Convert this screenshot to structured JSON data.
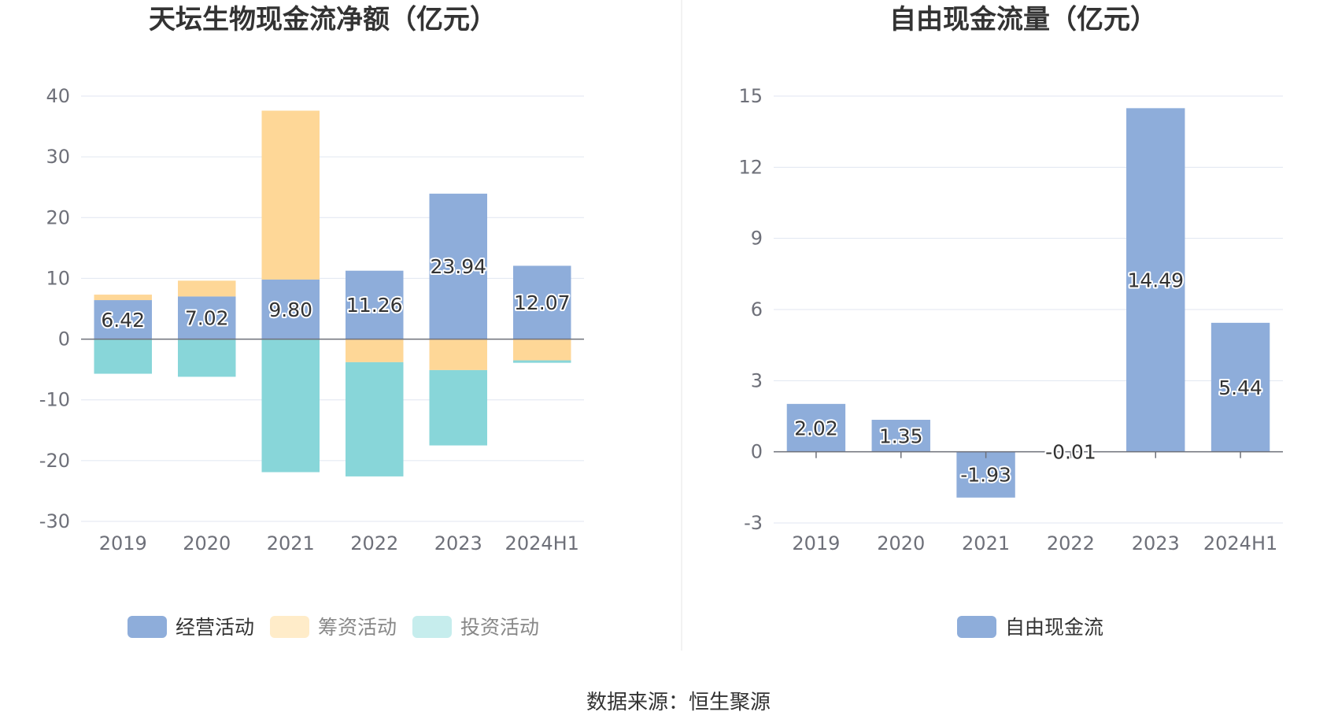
{
  "chart_data": [
    {
      "type": "bar",
      "stacked": true,
      "title": "天坛生物现金流净额（亿元）",
      "categories": [
        "2019",
        "2020",
        "2021",
        "2022",
        "2023",
        "2024H1"
      ],
      "ylim": [
        -30,
        40
      ],
      "yticks": [
        40,
        30,
        20,
        10,
        0,
        -10,
        -20,
        -30
      ],
      "series": [
        {
          "name": "经营活动",
          "color": "#8eadda",
          "values": [
            6.42,
            7.02,
            9.8,
            11.26,
            23.94,
            12.07
          ],
          "labels": [
            "6.42",
            "7.02",
            "9.80",
            "11.26",
            "23.94",
            "12.07"
          ]
        },
        {
          "name": "筹资活动",
          "color": "#fed797",
          "values": [
            0.9,
            2.6,
            27.8,
            -3.8,
            -5.1,
            -3.5
          ]
        },
        {
          "name": "投资活动",
          "color": "#88d6d9",
          "values": [
            -5.7,
            -6.2,
            -21.9,
            -18.8,
            -12.4,
            -0.4
          ]
        }
      ],
      "legend": [
        {
          "name": "经营活动",
          "color": "#8eadda",
          "active": true
        },
        {
          "name": "筹资活动",
          "color": "#ffecc9",
          "active": false
        },
        {
          "name": "投资活动",
          "color": "#c6eded",
          "active": false
        }
      ],
      "grid": true,
      "legend_position": "bottom"
    },
    {
      "type": "bar",
      "title": "自由现金流量（亿元）",
      "categories": [
        "2019",
        "2020",
        "2021",
        "2022",
        "2023",
        "2024H1"
      ],
      "ylim": [
        -3,
        15
      ],
      "yticks": [
        15,
        12,
        9,
        6,
        3,
        0,
        -3
      ],
      "series": [
        {
          "name": "自由现金流",
          "color": "#8eadda",
          "values": [
            2.02,
            1.35,
            -1.93,
            -0.01,
            14.49,
            5.44
          ],
          "labels": [
            "2.02",
            "1.35",
            "-1.93",
            "-0.01",
            "14.49",
            "5.44"
          ]
        }
      ],
      "legend": [
        {
          "name": "自由现金流",
          "color": "#8eadda",
          "active": true
        }
      ],
      "grid": true,
      "legend_position": "bottom"
    }
  ],
  "source": "数据来源：恒生聚源",
  "colors": {
    "divider": "#eeeeee",
    "grid": "#e0e6f1",
    "axis": "#6e7079"
  }
}
